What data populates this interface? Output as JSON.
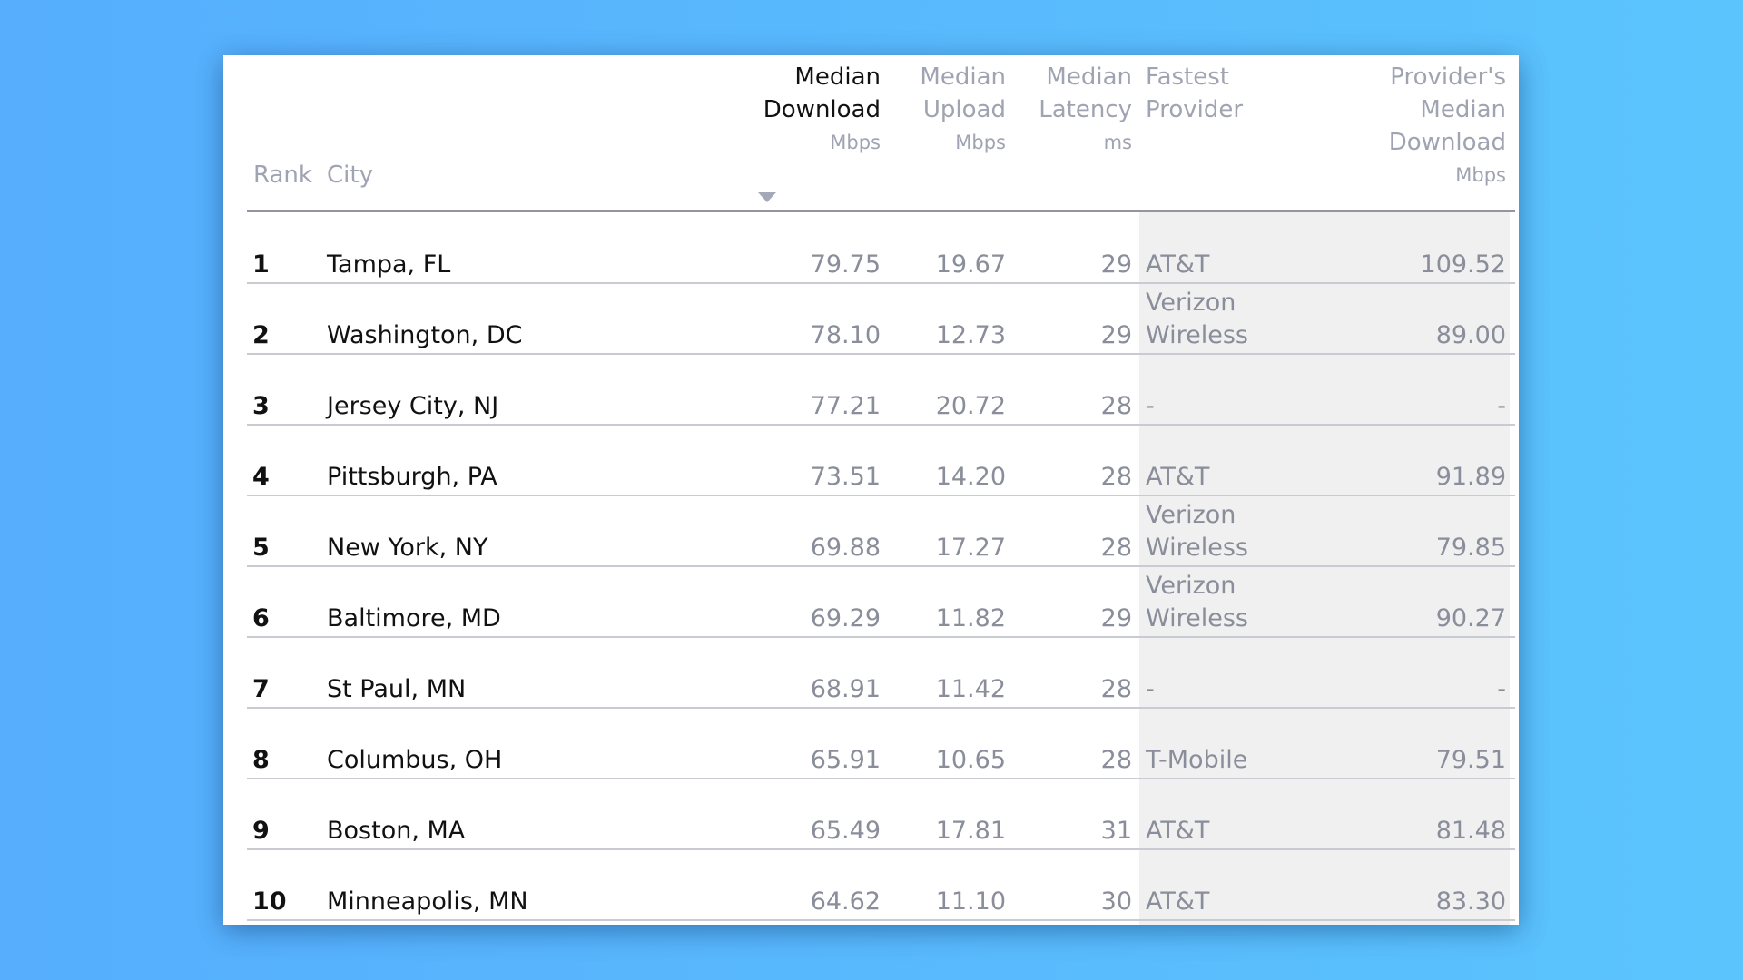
{
  "table": {
    "columns": {
      "rank": "Rank",
      "city": "City",
      "median_download": {
        "line1": "Median",
        "line2": "Download",
        "unit": "Mbps"
      },
      "median_upload": {
        "line1": "Median",
        "line2": "Upload",
        "unit": "Mbps"
      },
      "median_latency": {
        "line1": "Median",
        "line2": "Latency",
        "unit": "ms"
      },
      "fastest_provider": {
        "line1": "Fastest",
        "line2": "Provider"
      },
      "provider_download": {
        "line1": "Provider's",
        "line2": "Median",
        "line3": "Download",
        "unit": "Mbps"
      }
    },
    "sort": {
      "column": "median_download",
      "direction": "descending"
    },
    "rows": [
      {
        "rank": "1",
        "city": "Tampa, FL",
        "download": "79.75",
        "upload": "19.67",
        "latency": "29",
        "provider": "AT&T",
        "provider_download": "109.52"
      },
      {
        "rank": "2",
        "city": "Washington, DC",
        "download": "78.10",
        "upload": "12.73",
        "latency": "29",
        "provider": "Verizon Wireless",
        "provider_download": "89.00"
      },
      {
        "rank": "3",
        "city": "Jersey City, NJ",
        "download": "77.21",
        "upload": "20.72",
        "latency": "28",
        "provider": "-",
        "provider_download": "-"
      },
      {
        "rank": "4",
        "city": "Pittsburgh, PA",
        "download": "73.51",
        "upload": "14.20",
        "latency": "28",
        "provider": "AT&T",
        "provider_download": "91.89"
      },
      {
        "rank": "5",
        "city": "New York, NY",
        "download": "69.88",
        "upload": "17.27",
        "latency": "28",
        "provider": "Verizon Wireless",
        "provider_download": "79.85"
      },
      {
        "rank": "6",
        "city": "Baltimore, MD",
        "download": "69.29",
        "upload": "11.82",
        "latency": "29",
        "provider": "Verizon Wireless",
        "provider_download": "90.27"
      },
      {
        "rank": "7",
        "city": "St Paul, MN",
        "download": "68.91",
        "upload": "11.42",
        "latency": "28",
        "provider": "-",
        "provider_download": "-"
      },
      {
        "rank": "8",
        "city": "Columbus, OH",
        "download": "65.91",
        "upload": "10.65",
        "latency": "28",
        "provider": "T-Mobile",
        "provider_download": "79.51"
      },
      {
        "rank": "9",
        "city": "Boston, MA",
        "download": "65.49",
        "upload": "17.81",
        "latency": "31",
        "provider": "AT&T",
        "provider_download": "81.48"
      },
      {
        "rank": "10",
        "city": "Minneapolis, MN",
        "download": "64.62",
        "upload": "11.10",
        "latency": "30",
        "provider": "AT&T",
        "provider_download": "83.30"
      }
    ]
  },
  "colors": {
    "background_left": "#56aefd",
    "background_right": "#5bc4fd",
    "header_text": "#a0a3b1",
    "active_header_text": "#111111",
    "number_text": "#8a8d9a",
    "provider_column_shade": "#f0f0f0"
  },
  "icons": {
    "sort_indicator": "triangle-down"
  }
}
